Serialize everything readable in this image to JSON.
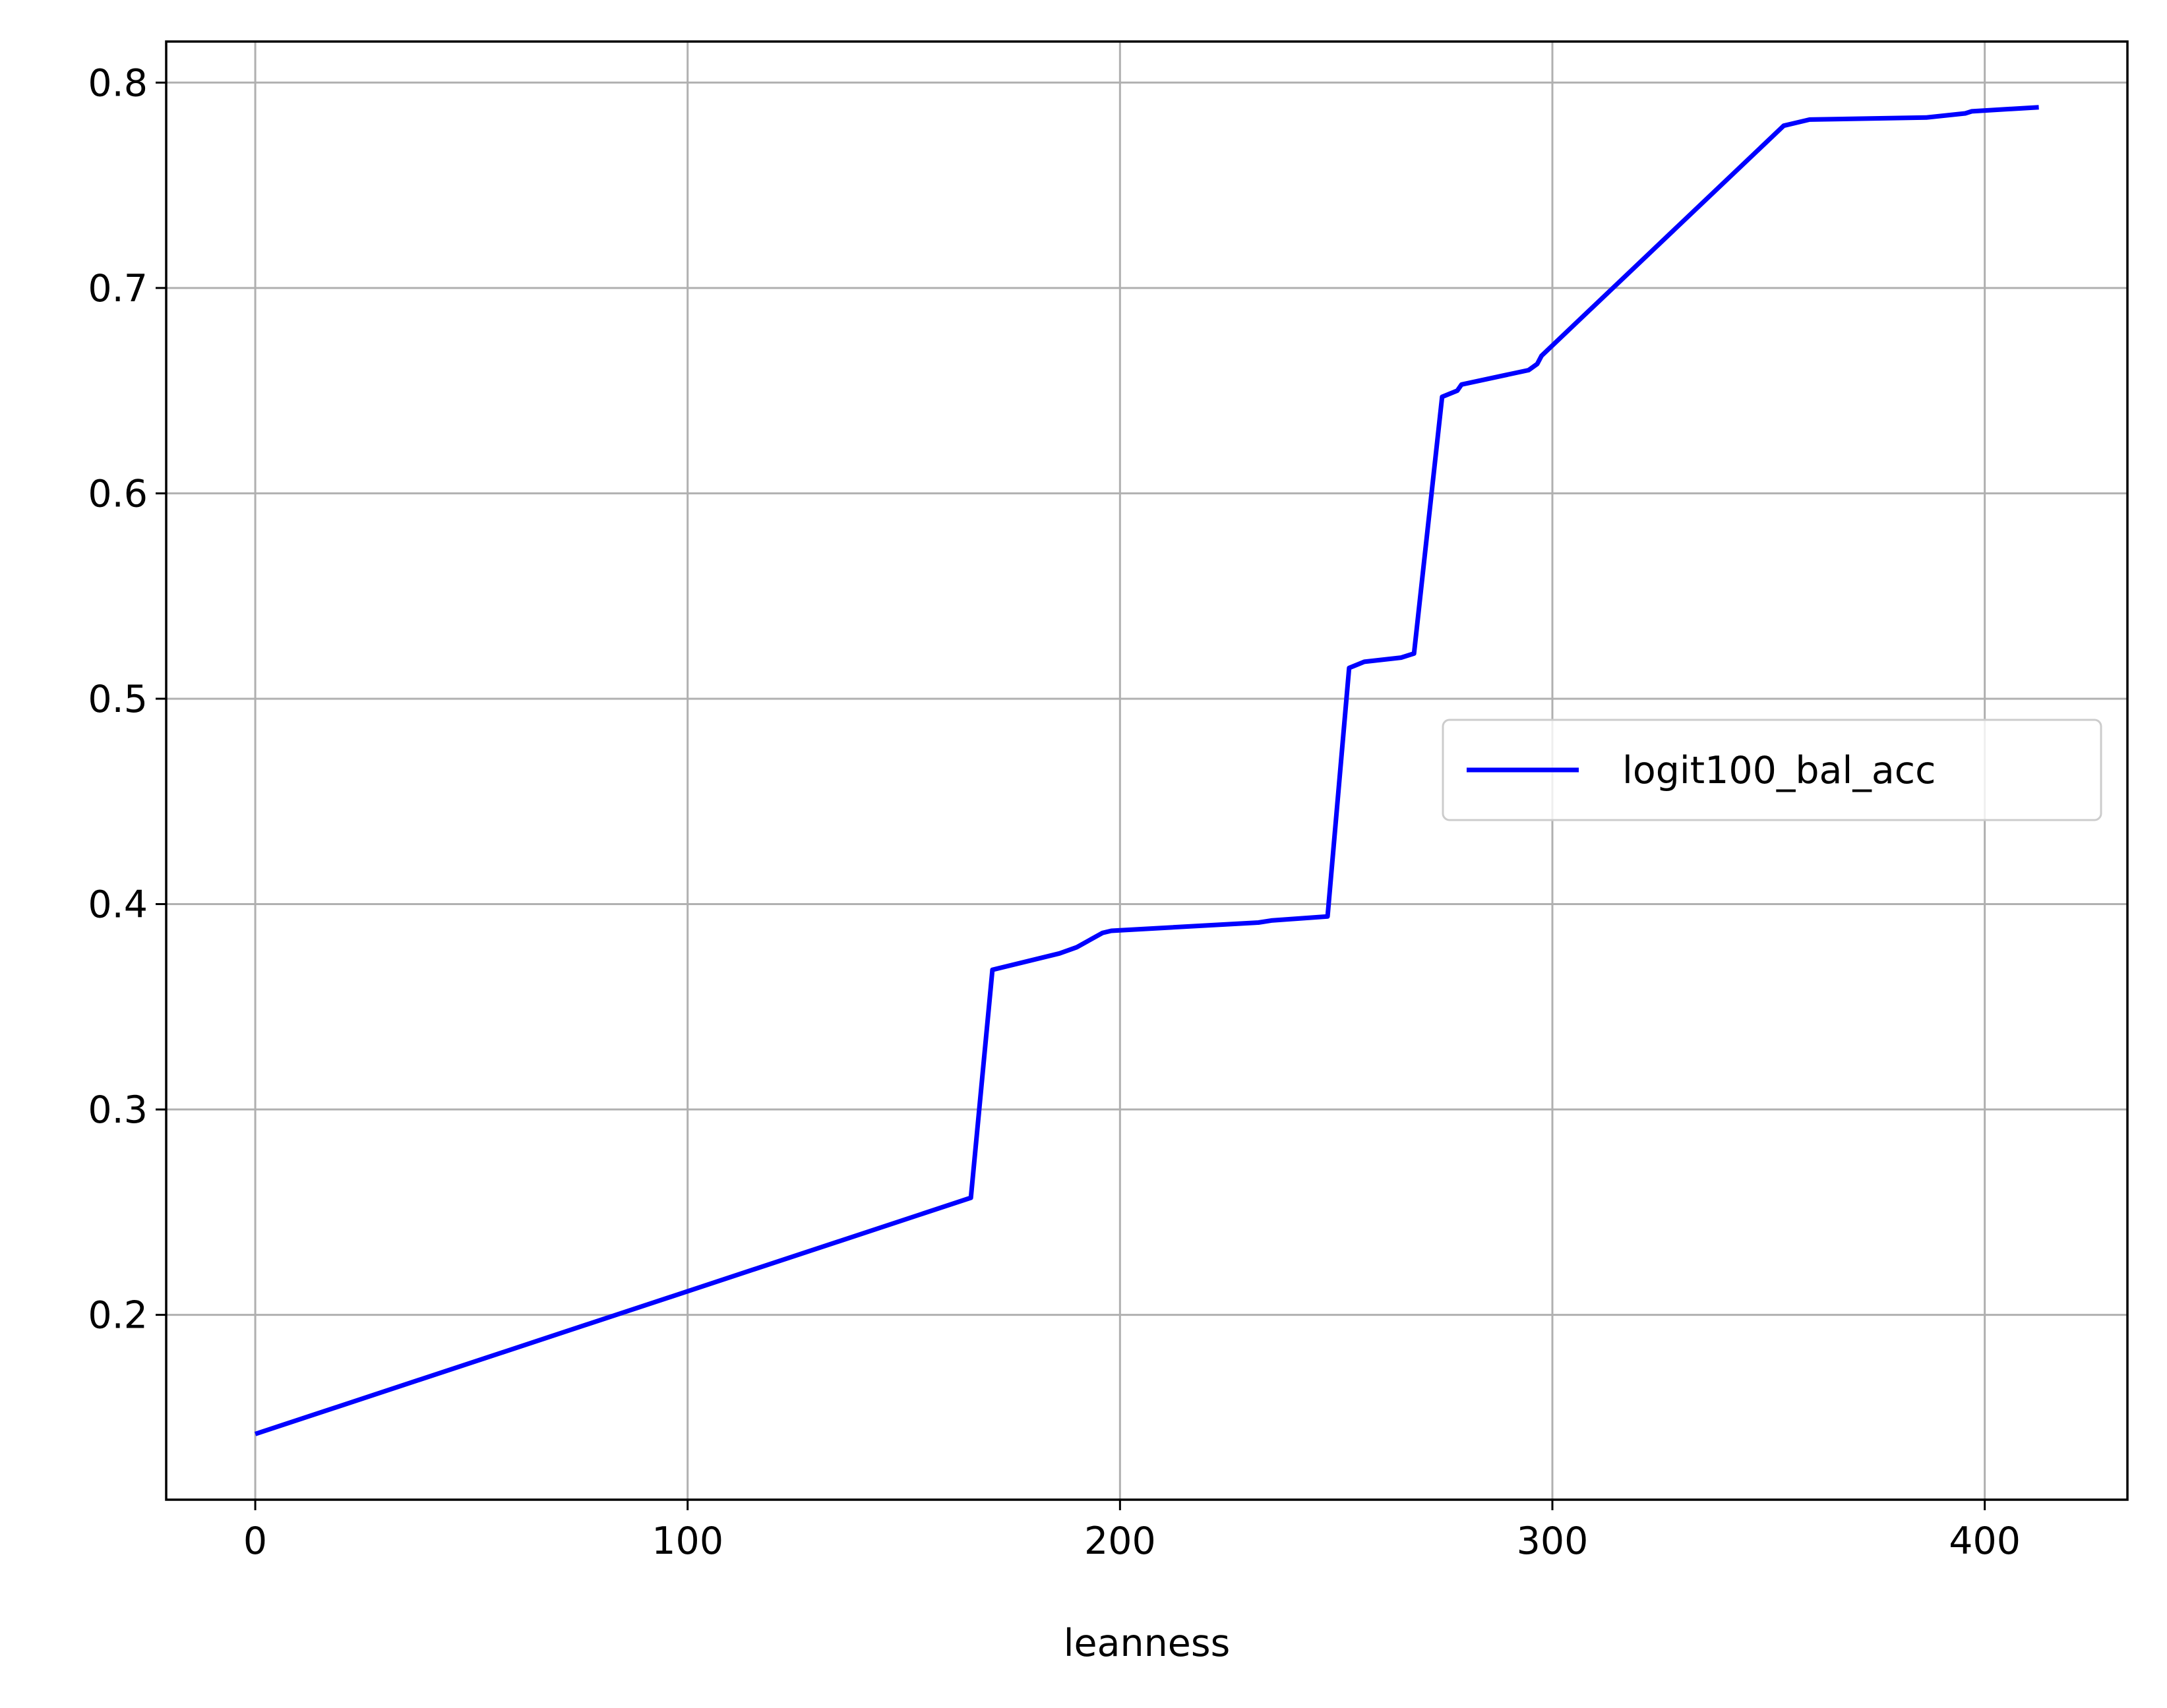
{
  "chart_data": {
    "type": "line",
    "title": "",
    "xlabel": "leanness",
    "ylabel": "",
    "xlim": [
      -20.6,
      433
    ],
    "ylim": [
      0.11,
      0.82
    ],
    "xticks": [
      0,
      100,
      200,
      300,
      400
    ],
    "yticks": [
      0.2,
      0.3,
      0.4,
      0.5,
      0.6,
      0.7,
      0.8
    ],
    "xtick_labels": [
      "0",
      "100",
      "200",
      "300",
      "400"
    ],
    "ytick_labels": [
      "0.2",
      "0.3",
      "0.4",
      "0.5",
      "0.6",
      "0.7",
      "0.8"
    ],
    "grid": true,
    "legend_position": "center-right",
    "series": [
      {
        "name": "logit100_bal_acc",
        "color": "#0000ff",
        "x": [
          0,
          165.5,
          170.5,
          186,
          190,
          196,
          198,
          232,
          235,
          248,
          253,
          256.5,
          265,
          268,
          274.5,
          278,
          279,
          294.5,
          296.5,
          297.5,
          353.5,
          359.5,
          386.5,
          395.5,
          397,
          412.5
        ],
        "y": [
          0.142,
          0.257,
          0.368,
          0.376,
          0.379,
          0.386,
          0.387,
          0.391,
          0.392,
          0.394,
          0.515,
          0.518,
          0.52,
          0.522,
          0.647,
          0.65,
          0.653,
          0.66,
          0.663,
          0.667,
          0.779,
          0.782,
          0.783,
          0.785,
          0.786,
          0.788
        ]
      }
    ]
  }
}
